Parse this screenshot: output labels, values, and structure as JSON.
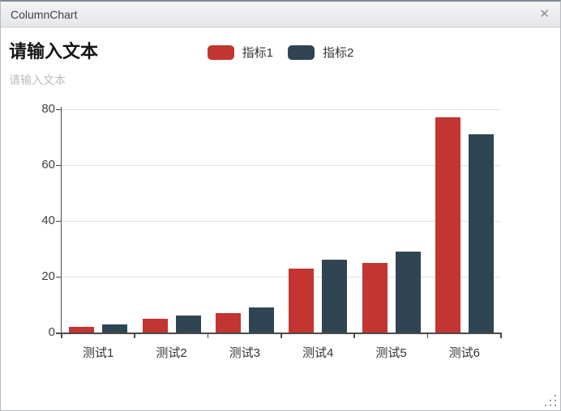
{
  "window": {
    "title": "ColumnChart",
    "close_glyph": "✕"
  },
  "header": {
    "title": "请输入文本",
    "subtitle": "请输入文本"
  },
  "colors": {
    "series1": "#c23531",
    "series2": "#2f4554",
    "axis": "#4b4b4b",
    "grid": "#e2e2e2",
    "titlebar_bg": "#eceded",
    "subtitle_text": "#bdbdbd"
  },
  "chart_data": {
    "type": "bar",
    "title": "请输入文本",
    "subtitle": "请输入文本",
    "categories": [
      "测试1",
      "测试2",
      "测试3",
      "测试4",
      "测试5",
      "测试6"
    ],
    "series": [
      {
        "name": "指标1",
        "color": "#c23531",
        "values": [
          2,
          5,
          7,
          23,
          25,
          77
        ]
      },
      {
        "name": "指标2",
        "color": "#2f4554",
        "values": [
          3,
          6,
          9,
          26,
          29,
          71
        ]
      }
    ],
    "xlabel": "",
    "ylabel": "",
    "ylim": [
      0,
      80
    ],
    "yticks": [
      0,
      20,
      40,
      60,
      80
    ],
    "grid": true,
    "legend_position": "top-center"
  }
}
